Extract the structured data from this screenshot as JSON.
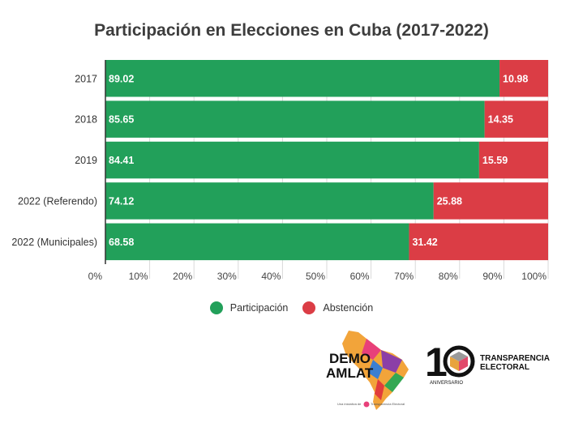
{
  "chart_data": {
    "type": "bar",
    "orientation": "horizontal",
    "stacked": true,
    "title": "Participación en Elecciones en Cuba (2017-2022)",
    "categories": [
      "2017",
      "2018",
      "2019",
      "2022 (Referendo)",
      "2022 (Municipales)"
    ],
    "series": [
      {
        "name": "Participación",
        "color": "#22a05a",
        "values": [
          89.02,
          85.65,
          84.41,
          74.12,
          68.58
        ]
      },
      {
        "name": "Abstención",
        "color": "#db3d45",
        "values": [
          10.98,
          14.35,
          15.59,
          25.88,
          31.42
        ]
      }
    ],
    "xlim": [
      0,
      100
    ],
    "x_ticks": [
      "0%",
      "10%",
      "20%",
      "30%",
      "40%",
      "50%",
      "60%",
      "70%",
      "80%",
      "90%",
      "100%"
    ],
    "grid": true,
    "legend_position": "bottom"
  },
  "logos": {
    "demo_line1": "DEMO",
    "demo_line2": "AMLAT",
    "demo_tagline": "Una iniciativa de",
    "demo_tagline_brand": "Transparencia Electoral",
    "te_number": "10",
    "te_anniversary": "ANIVERSARIO",
    "te_line1": "TRANSPARENCIA",
    "te_line2": "ELECTORAL"
  }
}
